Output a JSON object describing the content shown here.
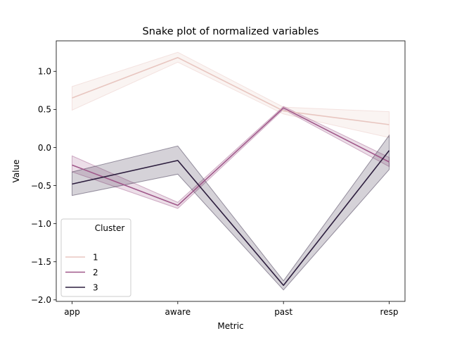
{
  "chart_data": {
    "type": "line",
    "title": "Snake plot of normalized variables",
    "xlabel": "Metric",
    "ylabel": "Value",
    "categories": [
      "app",
      "aware",
      "past",
      "resp"
    ],
    "ylim": [
      -2.02,
      1.4
    ],
    "yticks": [
      1.0,
      0.5,
      0.0,
      -0.5,
      -1.0,
      -1.5,
      -2.0
    ],
    "ytick_labels": [
      "1.0",
      "0.5",
      "0.0",
      "−0.5",
      "−1.0",
      "−1.5",
      "−2.0"
    ],
    "grid": false,
    "legend": {
      "title": "Cluster",
      "placement": "lower-left"
    },
    "series": [
      {
        "name": "1",
        "color": "#e8c6c0",
        "band_opacity": 0.2,
        "values": [
          0.65,
          1.18,
          0.48,
          0.3
        ],
        "ci_low": [
          0.49,
          1.12,
          0.44,
          0.13
        ],
        "ci_high": [
          0.8,
          1.25,
          0.53,
          0.47
        ]
      },
      {
        "name": "2",
        "color": "#a0588a",
        "band_opacity": 0.2,
        "values": [
          -0.23,
          -0.76,
          0.52,
          -0.19
        ],
        "ci_low": [
          -0.32,
          -0.8,
          0.5,
          -0.25
        ],
        "ci_high": [
          -0.11,
          -0.72,
          0.54,
          -0.13
        ]
      },
      {
        "name": "3",
        "color": "#2d1e3e",
        "band_opacity": 0.2,
        "values": [
          -0.48,
          -0.17,
          -1.81,
          -0.04
        ],
        "ci_low": [
          -0.63,
          -0.35,
          -1.87,
          -0.29
        ],
        "ci_high": [
          -0.32,
          0.02,
          -1.75,
          0.16
        ]
      }
    ]
  }
}
